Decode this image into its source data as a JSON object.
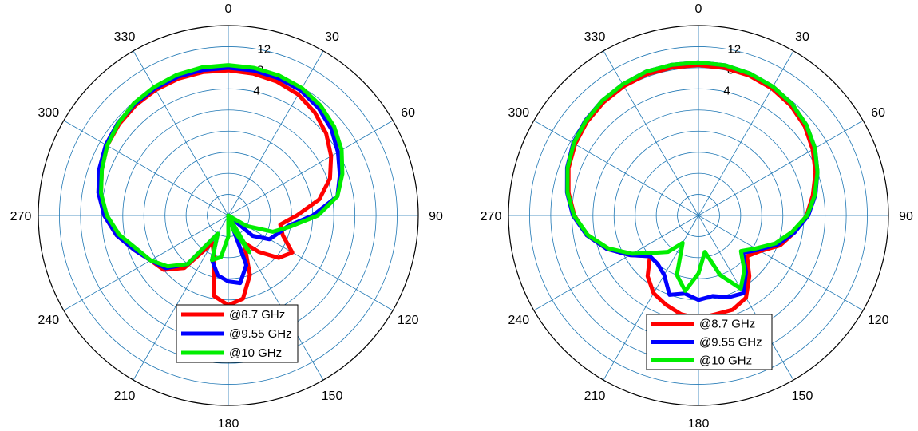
{
  "chart_data": [
    {
      "type": "polar-line",
      "title": "",
      "theta_ticks": [
        0,
        30,
        60,
        90,
        120,
        150,
        180,
        210,
        240,
        270,
        300,
        330
      ],
      "theta_tick_labels": [
        "0",
        "30",
        "60",
        "90",
        "120",
        "150",
        "180",
        "210",
        "240",
        "270",
        "300",
        "330"
      ],
      "theta_direction": "clockwise",
      "theta_zero": "top",
      "r_ticks": [
        4,
        8,
        12
      ],
      "r_tick_labels": [
        "4",
        "8",
        "12"
      ],
      "rlim": [
        -20,
        16
      ],
      "grid": true,
      "legend_position": "bottom",
      "series": [
        {
          "name": "@8.7 GHz",
          "color": "#ff0000",
          "theta": [
            0,
            10,
            20,
            30,
            40,
            50,
            60,
            70,
            80,
            90,
            100,
            110,
            120,
            130,
            140,
            150,
            160,
            170,
            180,
            190,
            200,
            210,
            220,
            230,
            240,
            250,
            260,
            270,
            280,
            290,
            300,
            310,
            320,
            330,
            340,
            350
          ],
          "r": [
            7.5,
            7.3,
            7.0,
            6.5,
            5.5,
            4.2,
            2.5,
            0.5,
            -2.5,
            -7.0,
            -10.0,
            -9.0,
            -6.0,
            -7.5,
            -11.0,
            -14.0,
            -8.0,
            -4.0,
            -3.0,
            -4.5,
            -12.0,
            -14.0,
            -7.0,
            -4.0,
            -3.0,
            -1.0,
            1.5,
            3.5,
            4.5,
            5.5,
            6.5,
            7.0,
            7.3,
            7.5,
            7.6,
            7.6
          ]
        },
        {
          "name": "@9.55 GHz",
          "color": "#0000ff",
          "theta": [
            0,
            10,
            20,
            30,
            40,
            50,
            60,
            70,
            80,
            90,
            100,
            110,
            120,
            130,
            140,
            150,
            160,
            170,
            180,
            190,
            200,
            210,
            220,
            230,
            240,
            250,
            260,
            270,
            280,
            290,
            300,
            310,
            320,
            330,
            340,
            350
          ],
          "r": [
            8.0,
            7.9,
            7.7,
            7.4,
            6.6,
            5.5,
            4.0,
            2.5,
            1.0,
            -4.0,
            -8.5,
            -10.0,
            -11.0,
            -14.0,
            -20.0,
            -20.0,
            -10.0,
            -7.0,
            -7.5,
            -8.5,
            -11.0,
            -16.0,
            -8.0,
            -4.5,
            -3.0,
            -1.0,
            1.5,
            3.5,
            5.0,
            6.0,
            6.8,
            7.3,
            7.6,
            7.8,
            8.0,
            8.0
          ]
        },
        {
          "name": "@10 GHz",
          "color": "#00ee00",
          "theta": [
            0,
            10,
            20,
            30,
            40,
            50,
            60,
            70,
            80,
            90,
            100,
            110,
            120,
            130,
            140,
            150,
            160,
            170,
            180,
            190,
            200,
            210,
            220,
            230,
            240,
            250,
            260,
            270,
            280,
            290,
            300,
            310,
            320,
            330,
            340,
            350
          ],
          "r": [
            8.5,
            8.4,
            8.2,
            7.9,
            7.2,
            6.2,
            4.8,
            3.0,
            1.0,
            -3.0,
            -8.0,
            -11.0,
            -16.0,
            -20.0,
            -20.0,
            -12.0,
            -17.0,
            -20.0,
            -16.0,
            -12.0,
            -11.0,
            -16.0,
            -8.0,
            -5.0,
            -3.0,
            -1.5,
            1.0,
            3.0,
            4.5,
            5.5,
            6.5,
            7.2,
            7.8,
            8.1,
            8.4,
            8.5
          ]
        }
      ]
    },
    {
      "type": "polar-line",
      "title": "",
      "theta_ticks": [
        0,
        30,
        60,
        90,
        120,
        150,
        180,
        210,
        240,
        270,
        300,
        330
      ],
      "theta_tick_labels": [
        "0",
        "30",
        "60",
        "90",
        "120",
        "150",
        "180",
        "210",
        "240",
        "270",
        "300",
        "330"
      ],
      "theta_direction": "clockwise",
      "theta_zero": "top",
      "r_ticks": [
        4,
        8,
        12
      ],
      "r_tick_labels": [
        "4",
        "8",
        "12"
      ],
      "rlim": [
        -20,
        16
      ],
      "grid": true,
      "legend_position": "bottom",
      "series": [
        {
          "name": "@8.7 GHz",
          "color": "#ff0000",
          "theta": [
            0,
            10,
            20,
            30,
            40,
            50,
            60,
            70,
            80,
            90,
            100,
            110,
            120,
            130,
            140,
            150,
            160,
            170,
            180,
            190,
            200,
            210,
            220,
            230,
            240,
            250,
            260,
            270,
            280,
            290,
            300,
            310,
            320,
            330,
            340,
            350
          ],
          "r": [
            8.5,
            8.4,
            8.2,
            7.8,
            7.2,
            6.3,
            5.0,
            3.6,
            2.0,
            0.5,
            -1.5,
            -3.5,
            -6.5,
            -8.0,
            -5.0,
            -2.0,
            -1.0,
            -1.0,
            -0.5,
            -1.0,
            -2.0,
            -3.0,
            -5.0,
            -8.0,
            -5.0,
            -1.5,
            1.5,
            3.5,
            5.0,
            6.2,
            7.0,
            7.6,
            8.0,
            8.3,
            8.5,
            8.5
          ]
        },
        {
          "name": "@9.55 GHz",
          "color": "#0000ff",
          "theta": [
            0,
            10,
            20,
            30,
            40,
            50,
            60,
            70,
            80,
            90,
            100,
            110,
            120,
            130,
            140,
            150,
            160,
            170,
            180,
            190,
            200,
            210,
            220,
            230,
            240,
            250,
            260,
            270,
            280,
            290,
            300,
            310,
            320,
            330,
            340,
            350
          ],
          "r": [
            9.0,
            8.9,
            8.6,
            8.2,
            7.6,
            6.7,
            5.5,
            4.0,
            2.5,
            0.8,
            -1.5,
            -4.0,
            -7.0,
            -9.0,
            -6.0,
            -3.0,
            -3.5,
            -4.5,
            -4.0,
            -5.0,
            -4.0,
            -7.0,
            -8.0,
            -8.0,
            -5.0,
            -1.5,
            1.5,
            3.8,
            5.3,
            6.5,
            7.4,
            8.0,
            8.4,
            8.7,
            9.0,
            9.0
          ]
        },
        {
          "name": "@10 GHz",
          "color": "#00ee00",
          "theta": [
            0,
            10,
            20,
            30,
            40,
            50,
            60,
            70,
            80,
            90,
            100,
            110,
            120,
            130,
            140,
            150,
            160,
            170,
            180,
            190,
            200,
            210,
            220,
            230,
            240,
            250,
            260,
            270,
            280,
            290,
            300,
            310,
            320,
            330,
            340,
            350
          ],
          "r": [
            9.0,
            8.9,
            8.6,
            8.2,
            7.6,
            6.7,
            5.5,
            4.0,
            2.4,
            0.6,
            -2.0,
            -4.5,
            -7.5,
            -9.5,
            -6.5,
            -4.0,
            -8.0,
            -13.0,
            -9.0,
            -5.5,
            -8.0,
            -14.0,
            -11.0,
            -9.0,
            -5.5,
            -1.8,
            1.3,
            3.6,
            5.2,
            6.4,
            7.3,
            7.9,
            8.4,
            8.7,
            9.0,
            9.0
          ]
        }
      ]
    }
  ]
}
